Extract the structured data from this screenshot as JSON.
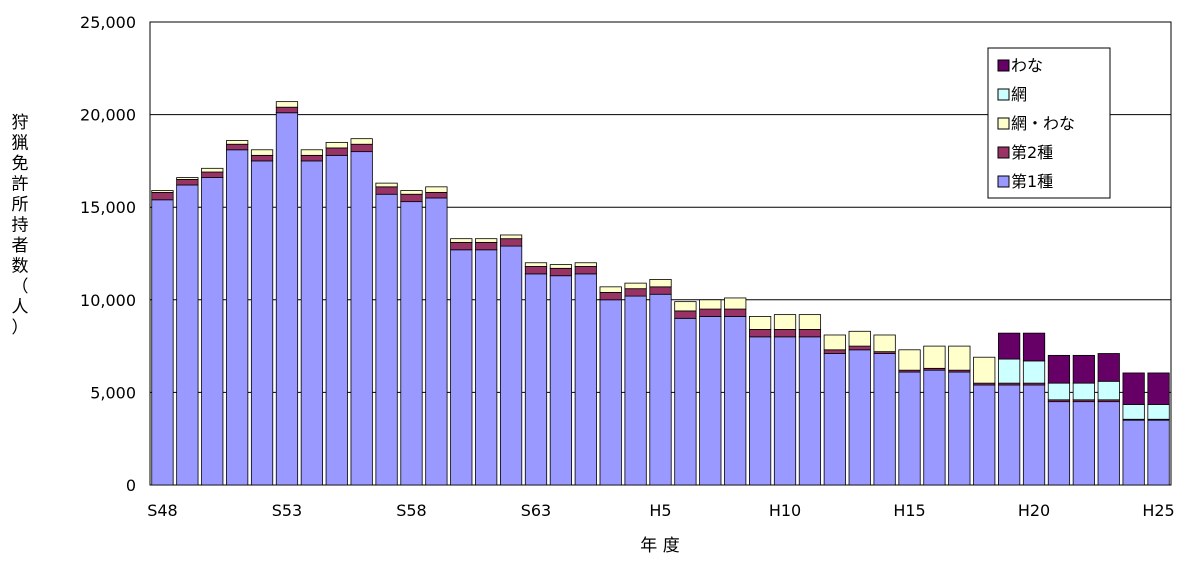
{
  "chart_data": {
    "type": "bar",
    "stacked": true,
    "title": "",
    "xlabel": "年 度",
    "ylabel": "狩猟免許所持者数（人）",
    "ylim": [
      0,
      25000
    ],
    "yticks": [
      0,
      5000,
      10000,
      15000,
      20000,
      25000
    ],
    "ytick_labels": [
      "0",
      "5,000",
      "10,000",
      "15,000",
      "20,000",
      "25,000"
    ],
    "grid": true,
    "legend_position": "top-right",
    "categories": [
      "S48",
      "S49",
      "S50",
      "S51",
      "S52",
      "S53",
      "S54",
      "S55",
      "S56",
      "S57",
      "S58",
      "S59",
      "S60",
      "S61",
      "S62",
      "S63",
      "H1",
      "H2",
      "H3",
      "H4",
      "H5",
      "H6",
      "H7",
      "H8",
      "H9",
      "H10",
      "H11",
      "H12",
      "H13",
      "H14",
      "H15",
      "H16",
      "H17",
      "H18",
      "H19",
      "H20",
      "H21",
      "H22",
      "H23",
      "H24",
      "H25"
    ],
    "xtick_labels": [
      "S48",
      "",
      "",
      "",
      "",
      "S53",
      "",
      "",
      "",
      "",
      "S58",
      "",
      "",
      "",
      "",
      "S63",
      "",
      "",
      "",
      "",
      "H5",
      "",
      "",
      "",
      "",
      "H10",
      "",
      "",
      "",
      "",
      "H15",
      "",
      "",
      "",
      "",
      "H20",
      "",
      "",
      "",
      "",
      "H25"
    ],
    "series": [
      {
        "name": "第1種",
        "color": "#9999ff",
        "values": [
          15400,
          16200,
          16600,
          18100,
          17500,
          20100,
          17500,
          17800,
          18000,
          15700,
          15300,
          15500,
          12700,
          12700,
          12900,
          11400,
          11300,
          11400,
          10000,
          10200,
          10300,
          9000,
          9100,
          9100,
          8000,
          8000,
          8000,
          7100,
          7300,
          7100,
          6100,
          6200,
          6100,
          5400,
          5400,
          5400,
          4500,
          4500,
          4500,
          3500,
          3500
        ]
      },
      {
        "name": "第2種",
        "color": "#993366",
        "values": [
          400,
          300,
          300,
          300,
          300,
          300,
          300,
          400,
          400,
          400,
          400,
          300,
          400,
          400,
          400,
          400,
          400,
          400,
          400,
          400,
          400,
          400,
          400,
          400,
          400,
          400,
          400,
          200,
          200,
          100,
          100,
          100,
          100,
          100,
          100,
          100,
          100,
          100,
          100,
          50,
          50
        ]
      },
      {
        "name": "網・わな",
        "color": "#ffffcc",
        "values": [
          100,
          100,
          200,
          200,
          300,
          300,
          300,
          300,
          300,
          200,
          200,
          300,
          200,
          200,
          200,
          200,
          200,
          200,
          300,
          300,
          400,
          500,
          500,
          600,
          700,
          800,
          800,
          800,
          800,
          900,
          1100,
          1200,
          1300,
          1400,
          0,
          0,
          0,
          0,
          0,
          0,
          0
        ]
      },
      {
        "name": "網",
        "color": "#ccffff",
        "values": [
          0,
          0,
          0,
          0,
          0,
          0,
          0,
          0,
          0,
          0,
          0,
          0,
          0,
          0,
          0,
          0,
          0,
          0,
          0,
          0,
          0,
          0,
          0,
          0,
          0,
          0,
          0,
          0,
          0,
          0,
          0,
          0,
          0,
          0,
          1300,
          1200,
          900,
          900,
          1000,
          800,
          800
        ]
      },
      {
        "name": "わな",
        "color": "#660066",
        "values": [
          0,
          0,
          0,
          0,
          0,
          0,
          0,
          0,
          0,
          0,
          0,
          0,
          0,
          0,
          0,
          0,
          0,
          0,
          0,
          0,
          0,
          0,
          0,
          0,
          0,
          0,
          0,
          0,
          0,
          0,
          0,
          0,
          0,
          0,
          1400,
          1500,
          1500,
          1500,
          1500,
          1700,
          1700
        ]
      }
    ],
    "legend_order": [
      "わな",
      "網",
      "網・わな",
      "第2種",
      "第1種"
    ]
  }
}
